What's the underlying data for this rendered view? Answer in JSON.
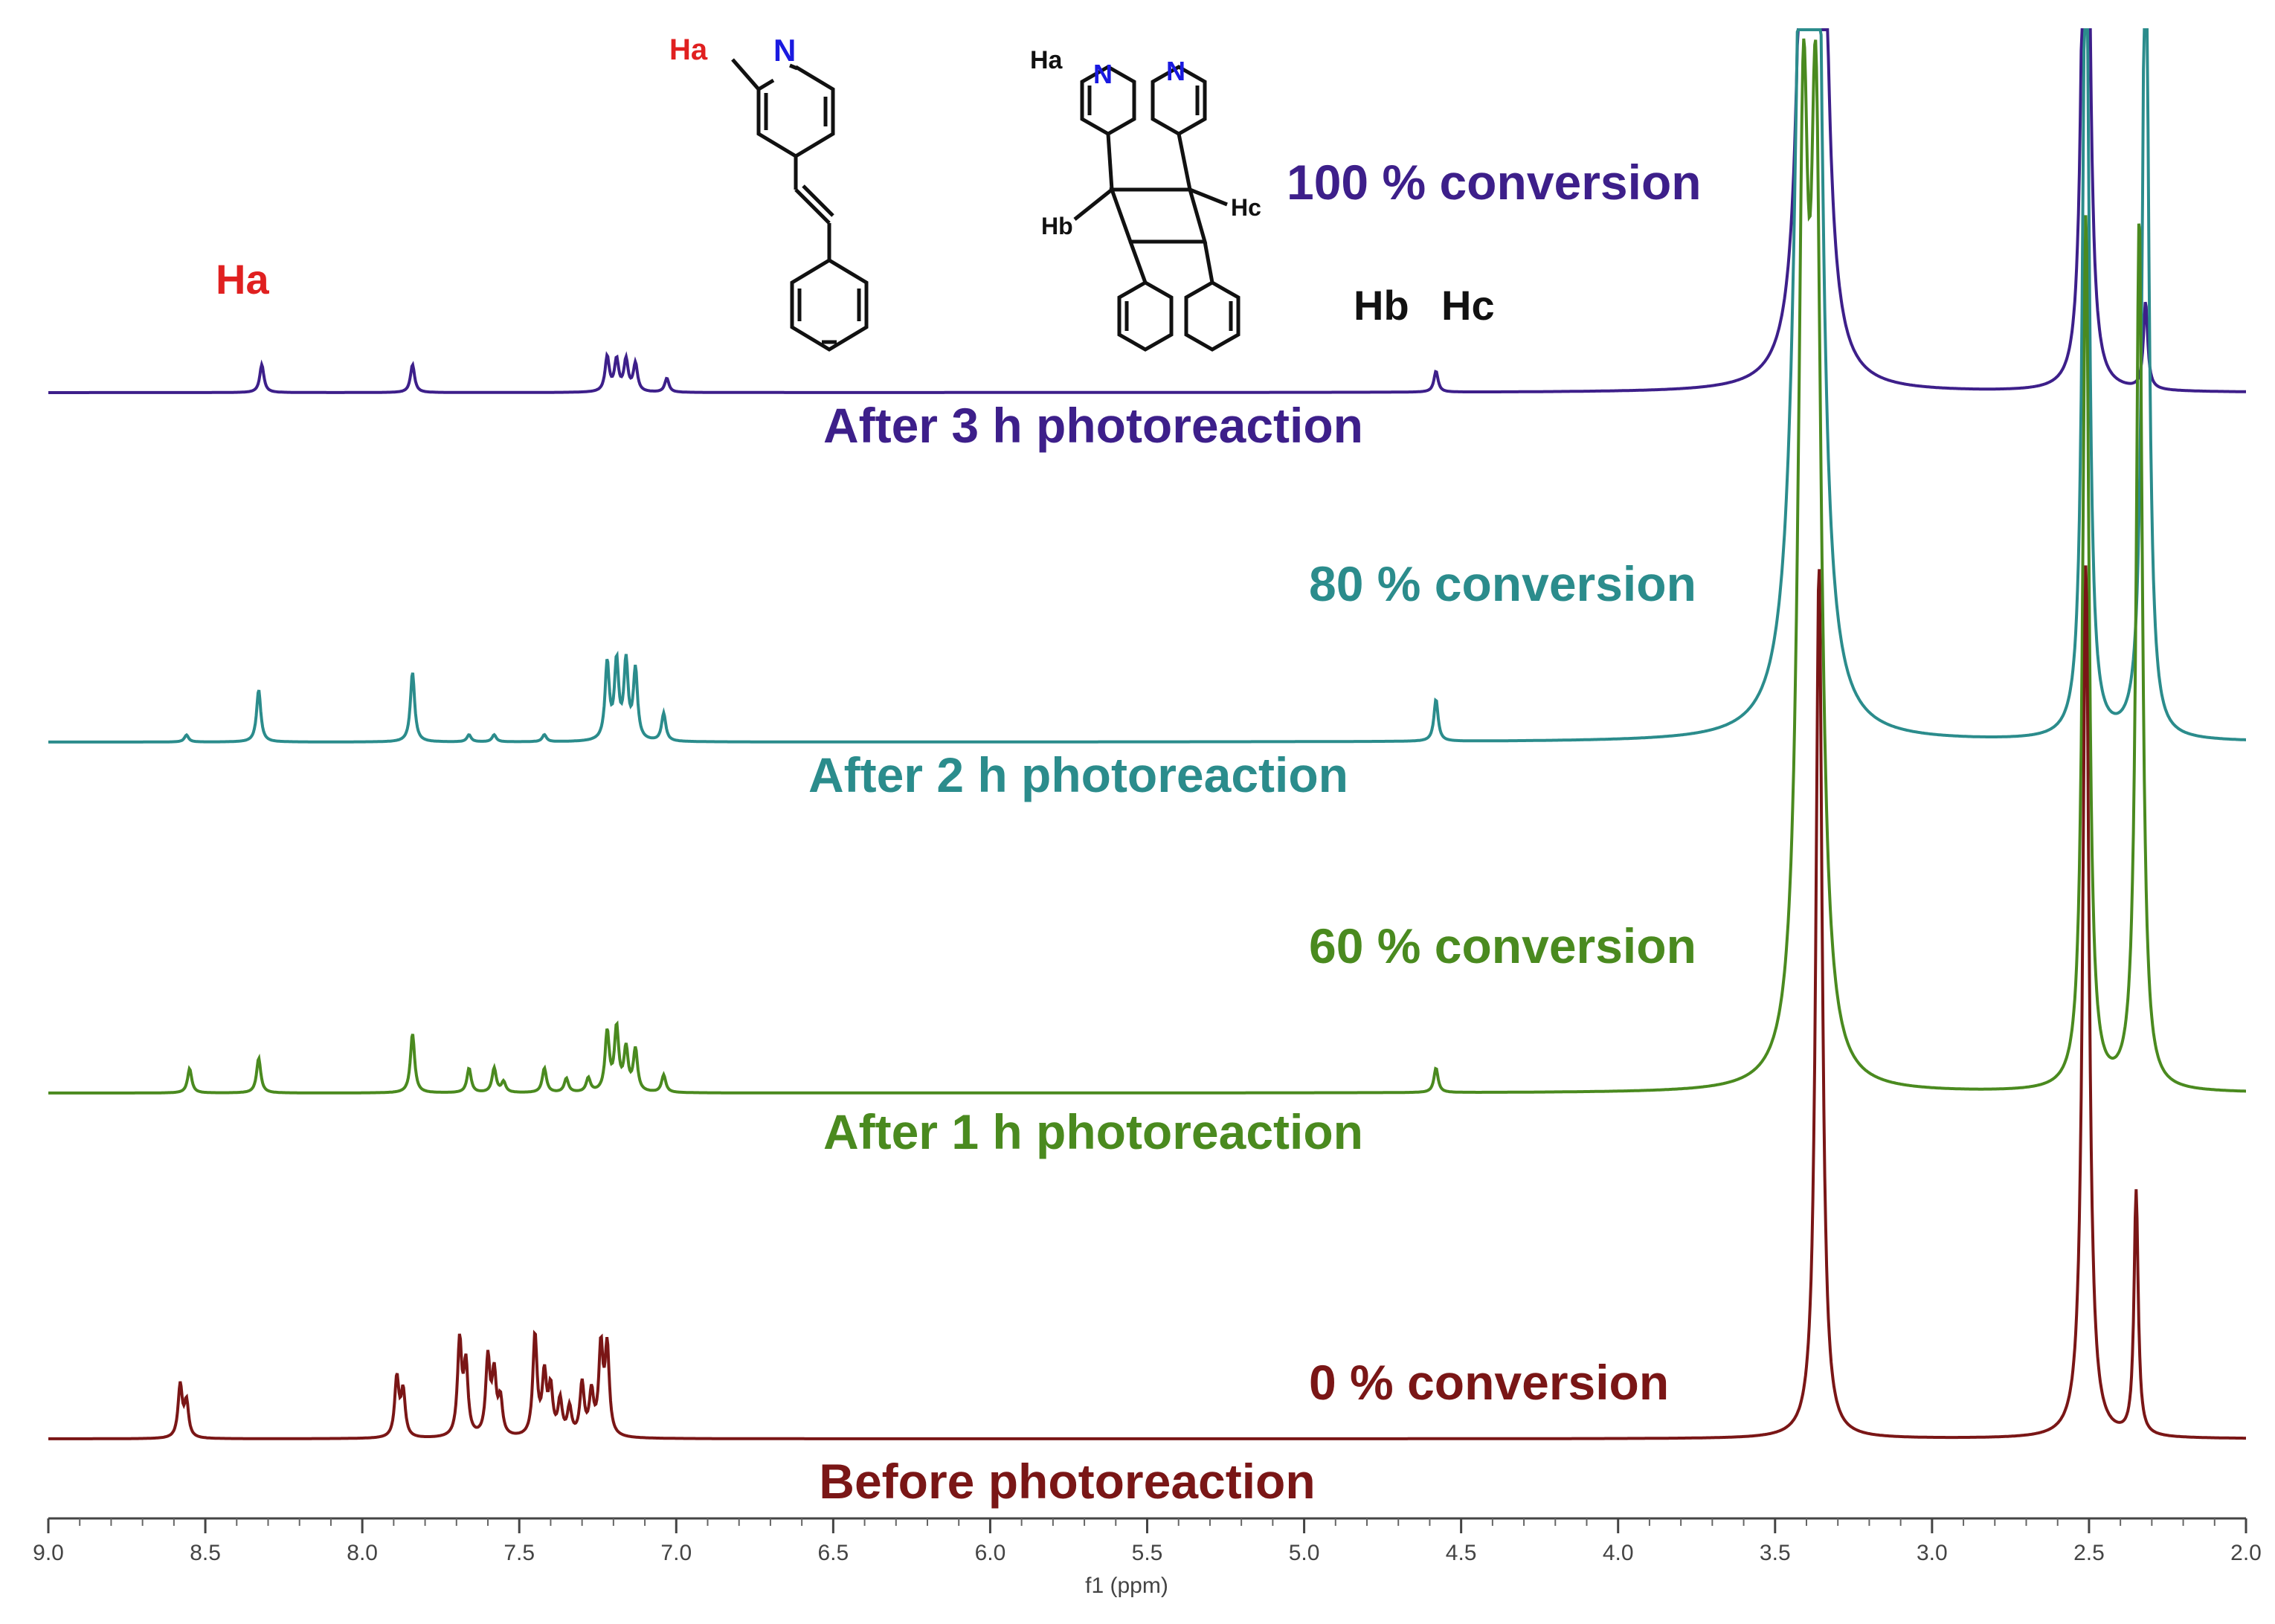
{
  "chart_data": {
    "type": "line",
    "title": "",
    "xlabel": "f1 (ppm)",
    "ylabel": "",
    "xlim": [
      9.0,
      2.0
    ],
    "x_ticks": [
      "9.0",
      "8.5",
      "8.0",
      "7.5",
      "7.0",
      "6.5",
      "6.0",
      "5.5",
      "5.0",
      "4.5",
      "4.0",
      "3.5",
      "3.0",
      "2.5",
      "2.0"
    ],
    "x_tick_values": [
      9.0,
      8.5,
      8.0,
      7.5,
      7.0,
      6.5,
      6.0,
      5.5,
      5.0,
      4.5,
      4.0,
      3.5,
      3.0,
      2.5,
      2.0
    ],
    "series": [
      {
        "name": "After 3 h photoreaction",
        "conversion_label": "100 % conversion",
        "color": "#3d1f8a",
        "peaks": [
          {
            "ppm": 8.32,
            "h": 0.08
          },
          {
            "ppm": 7.84,
            "h": 0.08
          },
          {
            "ppm": 7.22,
            "h": 0.1
          },
          {
            "ppm": 7.19,
            "h": 0.09
          },
          {
            "ppm": 7.16,
            "h": 0.09
          },
          {
            "ppm": 7.13,
            "h": 0.08
          },
          {
            "ppm": 7.03,
            "h": 0.04
          },
          {
            "ppm": 4.58,
            "h": 0.06
          },
          {
            "ppm": 3.4,
            "h": 2.5,
            "w": 0.02
          },
          {
            "ppm": 3.36,
            "h": 2.5,
            "w": 0.02
          },
          {
            "ppm": 2.51,
            "h": 2.5,
            "w": 0.012
          },
          {
            "ppm": 2.32,
            "h": 0.25
          }
        ]
      },
      {
        "name": "After 2 h photoreaction",
        "conversion_label": "80 % conversion",
        "color": "#2b8c8c",
        "peaks": [
          {
            "ppm": 8.56,
            "h": 0.02
          },
          {
            "ppm": 8.33,
            "h": 0.15
          },
          {
            "ppm": 7.84,
            "h": 0.2
          },
          {
            "ppm": 7.66,
            "h": 0.02
          },
          {
            "ppm": 7.58,
            "h": 0.02
          },
          {
            "ppm": 7.42,
            "h": 0.02
          },
          {
            "ppm": 7.22,
            "h": 0.22
          },
          {
            "ppm": 7.19,
            "h": 0.22
          },
          {
            "ppm": 7.16,
            "h": 0.22
          },
          {
            "ppm": 7.13,
            "h": 0.2
          },
          {
            "ppm": 7.04,
            "h": 0.08
          },
          {
            "ppm": 4.58,
            "h": 0.12
          },
          {
            "ppm": 3.41,
            "h": 2.5,
            "w": 0.03
          },
          {
            "ppm": 3.37,
            "h": 2.5,
            "w": 0.02
          },
          {
            "ppm": 2.51,
            "h": 2.5,
            "w": 0.012
          },
          {
            "ppm": 2.32,
            "h": 2.5,
            "w": 0.012
          }
        ]
      },
      {
        "name": "After 1 h photoreaction",
        "conversion_label": "60 % conversion",
        "color": "#4a8a1f",
        "peaks": [
          {
            "ppm": 8.55,
            "h": 0.07
          },
          {
            "ppm": 8.33,
            "h": 0.1
          },
          {
            "ppm": 7.84,
            "h": 0.17
          },
          {
            "ppm": 7.66,
            "h": 0.07
          },
          {
            "ppm": 7.58,
            "h": 0.07
          },
          {
            "ppm": 7.55,
            "h": 0.03
          },
          {
            "ppm": 7.42,
            "h": 0.07
          },
          {
            "ppm": 7.35,
            "h": 0.04
          },
          {
            "ppm": 7.28,
            "h": 0.04
          },
          {
            "ppm": 7.22,
            "h": 0.17
          },
          {
            "ppm": 7.19,
            "h": 0.18
          },
          {
            "ppm": 7.16,
            "h": 0.12
          },
          {
            "ppm": 7.13,
            "h": 0.12
          },
          {
            "ppm": 7.04,
            "h": 0.05
          },
          {
            "ppm": 4.58,
            "h": 0.07
          },
          {
            "ppm": 3.41,
            "h": 2.5,
            "w": 0.02
          },
          {
            "ppm": 3.37,
            "h": 2.5,
            "w": 0.02
          },
          {
            "ppm": 2.51,
            "h": 2.5,
            "w": 0.012
          },
          {
            "ppm": 2.34,
            "h": 2.5,
            "w": 0.012
          }
        ]
      },
      {
        "name": "Before photoreaction",
        "conversion_label": "0 % conversion",
        "color": "#7a1616",
        "peaks": [
          {
            "ppm": 8.58,
            "h": 0.15
          },
          {
            "ppm": 8.56,
            "h": 0.1
          },
          {
            "ppm": 7.89,
            "h": 0.17
          },
          {
            "ppm": 7.87,
            "h": 0.13
          },
          {
            "ppm": 7.69,
            "h": 0.27
          },
          {
            "ppm": 7.67,
            "h": 0.2
          },
          {
            "ppm": 7.6,
            "h": 0.22
          },
          {
            "ppm": 7.58,
            "h": 0.17
          },
          {
            "ppm": 7.56,
            "h": 0.1
          },
          {
            "ppm": 7.45,
            "h": 0.29
          },
          {
            "ppm": 7.42,
            "h": 0.17
          },
          {
            "ppm": 7.4,
            "h": 0.13
          },
          {
            "ppm": 7.37,
            "h": 0.1
          },
          {
            "ppm": 7.34,
            "h": 0.08
          },
          {
            "ppm": 7.3,
            "h": 0.15
          },
          {
            "ppm": 7.27,
            "h": 0.12
          },
          {
            "ppm": 7.24,
            "h": 0.25
          },
          {
            "ppm": 7.22,
            "h": 0.25
          },
          {
            "ppm": 3.36,
            "h": 2.5,
            "w": 0.012
          },
          {
            "ppm": 2.51,
            "h": 2.5,
            "w": 0.012
          },
          {
            "ppm": 2.35,
            "h": 0.7
          }
        ]
      }
    ],
    "annotations": [
      "Ha",
      "Hb",
      "Hc"
    ],
    "structure_labels": {
      "monomer_ha": "Ha",
      "monomer_n": "N",
      "dimer_ha": "Ha",
      "dimer_n1": "N",
      "dimer_n2": "N",
      "dimer_hb": "Hb",
      "dimer_hc": "Hc"
    },
    "colors": {
      "ha_label": "#e02020",
      "hbhc_label": "#111111",
      "nitrogen": "#1a1ae0",
      "axis": "#444444"
    }
  }
}
